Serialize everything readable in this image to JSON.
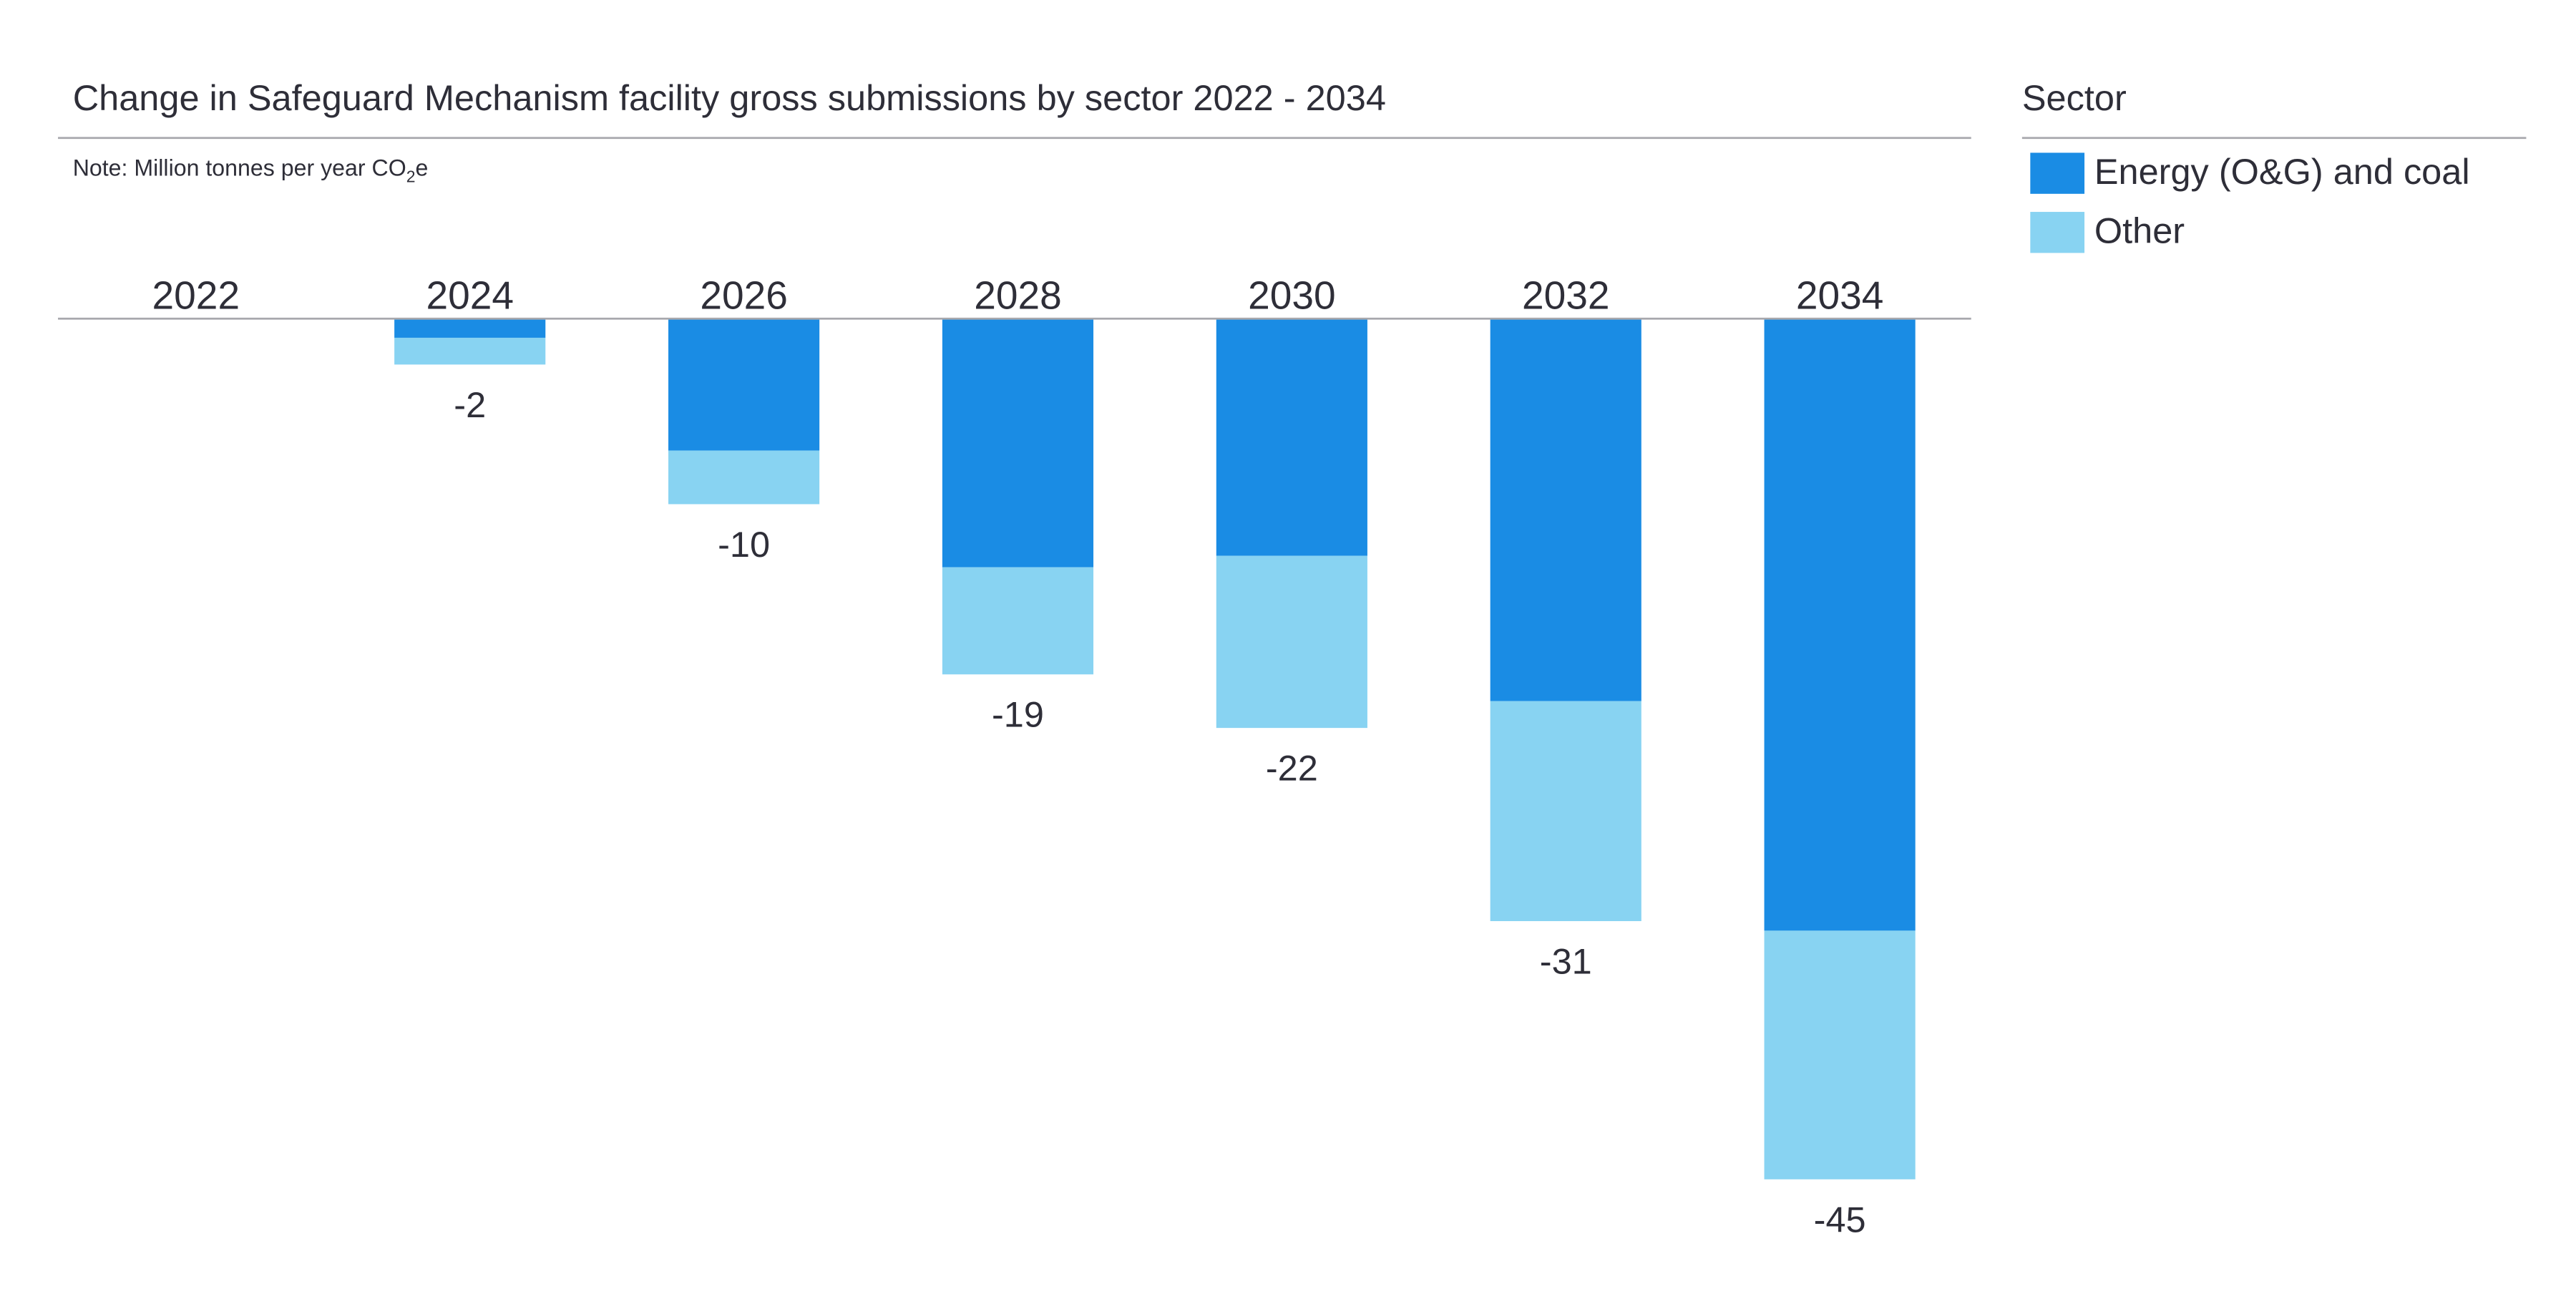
{
  "chart_data": {
    "type": "bar",
    "stacked": true,
    "title": "Change in Safeguard Mechanism facility gross submissions by sector 2022 - 2034",
    "note": {
      "text": "Note: Million tonnes per year CO",
      "subscript": "2",
      "suffix": "e"
    },
    "categories": [
      "2022",
      "2024",
      "2026",
      "2028",
      "2030",
      "2032",
      "2034"
    ],
    "series": [
      {
        "name": "Energy (O&G) and coal",
        "color": "#1a8ce4",
        "values": [
          0,
          -1.0,
          -6.9,
          -13.0,
          -12.4,
          -20.0,
          -32.0
        ]
      },
      {
        "name": "Other",
        "color": "#88d3f2",
        "values": [
          0,
          -1.4,
          -2.8,
          -5.6,
          -9.0,
          -11.5,
          -13.0
        ]
      }
    ],
    "total_labels": [
      "",
      "-2",
      "-10",
      "-19",
      "-22",
      "-31",
      "-45"
    ],
    "ylim": [
      -45,
      0
    ],
    "xaxis_position": "top",
    "grid": false,
    "legend": {
      "title": "Sector",
      "position": "right"
    }
  }
}
